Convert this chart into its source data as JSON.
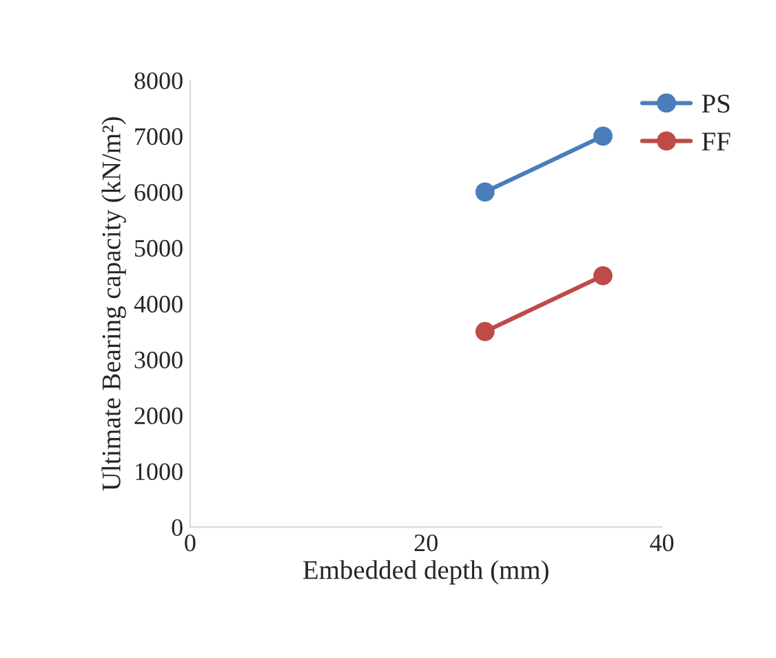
{
  "chart_data": {
    "type": "line",
    "xlabel": "Embedded depth (mm)",
    "ylabel": "Ultimate Bearing capacity (kN/m²)",
    "x": [
      25,
      35
    ],
    "series": [
      {
        "name": "PS",
        "color": "#4a7ebb",
        "values": [
          6000,
          7000
        ]
      },
      {
        "name": "FF",
        "color": "#be4b48",
        "values": [
          3500,
          4500
        ]
      }
    ],
    "xlim": [
      0,
      40
    ],
    "xticks": [
      0,
      20,
      40
    ],
    "ylim": [
      0,
      8000
    ],
    "yticks": [
      0,
      1000,
      2000,
      3000,
      4000,
      5000,
      6000,
      7000,
      8000
    ],
    "grid": false,
    "legend": "top right",
    "marker": "circle",
    "line_style": "solid"
  }
}
